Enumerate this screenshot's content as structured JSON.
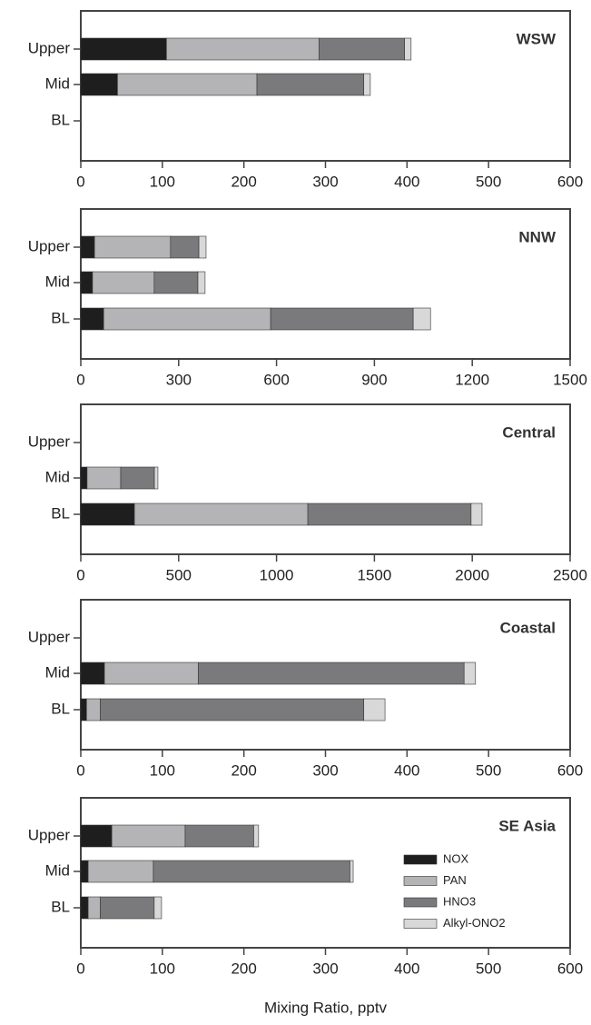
{
  "chart_data": [
    {
      "type": "stacked-barh",
      "title": "WSW",
      "categories": [
        "Upper",
        "Mid",
        "BL"
      ],
      "series": [
        {
          "name": "NOX",
          "color": "#1e1e1e",
          "values": [
            105,
            45,
            null
          ]
        },
        {
          "name": "PAN",
          "color": "#b4b4b6",
          "values": [
            187,
            171,
            null
          ]
        },
        {
          "name": "HNO3",
          "color": "#7a7a7c",
          "values": [
            105,
            131,
            null
          ]
        },
        {
          "name": "Alkyl-ONO2",
          "color": "#d8d8d8",
          "values": [
            8,
            8,
            null
          ]
        }
      ],
      "xlim": [
        0,
        600
      ],
      "xticks": [
        0,
        100,
        200,
        300,
        400,
        500,
        600
      ]
    },
    {
      "type": "stacked-barh",
      "title": "NNW",
      "categories": [
        "Upper",
        "Mid",
        "BL"
      ],
      "series": [
        {
          "name": "NOX",
          "color": "#1e1e1e",
          "values": [
            42,
            36,
            70
          ]
        },
        {
          "name": "PAN",
          "color": "#b4b4b6",
          "values": [
            233,
            189,
            512
          ]
        },
        {
          "name": "HNO3",
          "color": "#7a7a7c",
          "values": [
            87,
            134,
            437
          ]
        },
        {
          "name": "Alkyl-ONO2",
          "color": "#d8d8d8",
          "values": [
            22,
            22,
            53
          ]
        }
      ],
      "xlim": [
        0,
        1500
      ],
      "xticks": [
        0,
        300,
        600,
        900,
        1200,
        1500
      ]
    },
    {
      "type": "stacked-barh",
      "title": "Central",
      "categories": [
        "Upper",
        "Mid",
        "BL"
      ],
      "series": [
        {
          "name": "NOX",
          "color": "#1e1e1e",
          "values": [
            null,
            32,
            274
          ]
        },
        {
          "name": "PAN",
          "color": "#b4b4b6",
          "values": [
            null,
            172,
            886
          ]
        },
        {
          "name": "HNO3",
          "color": "#7a7a7c",
          "values": [
            null,
            172,
            834
          ]
        },
        {
          "name": "Alkyl-ONO2",
          "color": "#d8d8d8",
          "values": [
            null,
            18,
            56
          ]
        }
      ],
      "xlim": [
        0,
        2500
      ],
      "xticks": [
        0,
        500,
        1000,
        1500,
        2000,
        2500
      ]
    },
    {
      "type": "stacked-barh",
      "title": "Coastal",
      "categories": [
        "Upper",
        "Mid",
        "BL"
      ],
      "series": [
        {
          "name": "NOX",
          "color": "#1e1e1e",
          "values": [
            null,
            29,
            7
          ]
        },
        {
          "name": "PAN",
          "color": "#b4b4b6",
          "values": [
            null,
            115,
            17
          ]
        },
        {
          "name": "HNO3",
          "color": "#7a7a7c",
          "values": [
            null,
            326,
            323
          ]
        },
        {
          "name": "Alkyl-ONO2",
          "color": "#d8d8d8",
          "values": [
            null,
            14,
            26
          ]
        }
      ],
      "xlim": [
        0,
        600
      ],
      "xticks": [
        0,
        100,
        200,
        300,
        400,
        500,
        600
      ]
    },
    {
      "type": "stacked-barh",
      "title": "SE Asia",
      "categories": [
        "Upper",
        "Mid",
        "BL"
      ],
      "series": [
        {
          "name": "NOX",
          "color": "#1e1e1e",
          "values": [
            38,
            9,
            9
          ]
        },
        {
          "name": "PAN",
          "color": "#b4b4b6",
          "values": [
            90,
            80,
            15
          ]
        },
        {
          "name": "HNO3",
          "color": "#7a7a7c",
          "values": [
            84,
            241,
            66
          ]
        },
        {
          "name": "Alkyl-ONO2",
          "color": "#d8d8d8",
          "values": [
            6,
            4,
            9
          ]
        }
      ],
      "xlim": [
        0,
        600
      ],
      "xticks": [
        0,
        100,
        200,
        300,
        400,
        500,
        600
      ],
      "legend": "right",
      "x_label": "Mixing Ratio,  pptv"
    }
  ]
}
